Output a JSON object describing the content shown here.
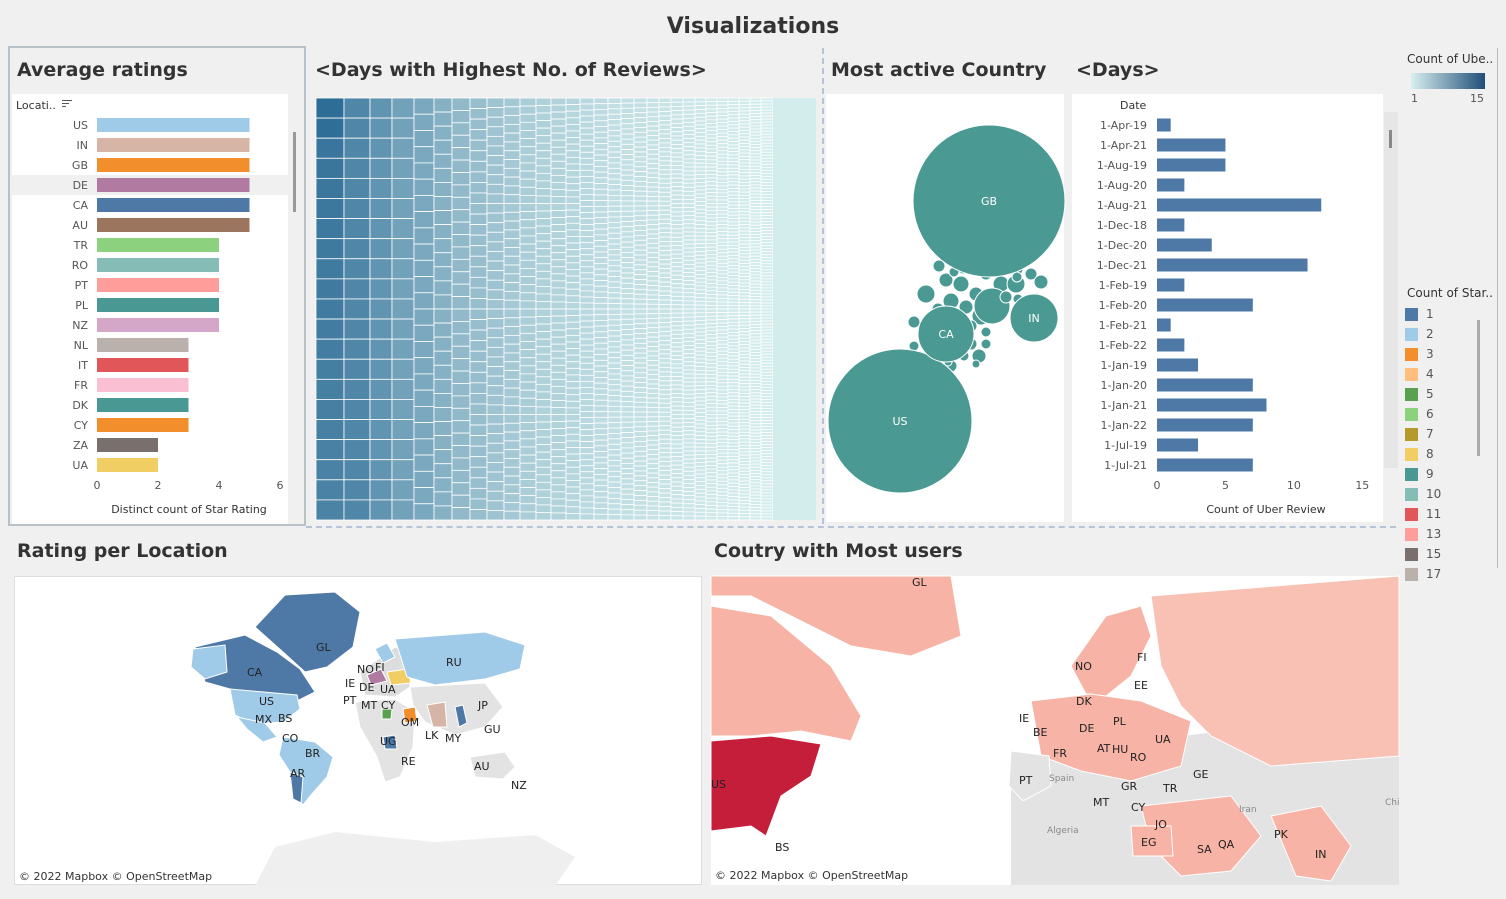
{
  "dashboard": {
    "title": "Visualizations"
  },
  "panels": {
    "avg_ratings": "Average ratings",
    "days_reviews": "<Days with Highest No. of Reviews>",
    "active_country": "Most active Country",
    "days": "<Days>",
    "rating_location": "Rating per Location",
    "country_users": "Coutry with Most users"
  },
  "legend_count_uber": {
    "title": "Count of Ube..",
    "min": "1",
    "max": "15",
    "colors": [
      "#d8f0ef",
      "#1f4e79"
    ]
  },
  "legend_star": {
    "title": "Count of Star..",
    "items": [
      {
        "label": "1",
        "color": "#4e79a7"
      },
      {
        "label": "2",
        "color": "#a0cbe8"
      },
      {
        "label": "3",
        "color": "#f28e2b"
      },
      {
        "label": "4",
        "color": "#ffbe7d"
      },
      {
        "label": "5",
        "color": "#59a14f"
      },
      {
        "label": "6",
        "color": "#8cd17d"
      },
      {
        "label": "7",
        "color": "#b6992d"
      },
      {
        "label": "8",
        "color": "#f1ce63"
      },
      {
        "label": "9",
        "color": "#499894"
      },
      {
        "label": "10",
        "color": "#86bcb6"
      },
      {
        "label": "11",
        "color": "#e15759"
      },
      {
        "label": "13",
        "color": "#ff9d9a"
      },
      {
        "label": "15",
        "color": "#79706e"
      },
      {
        "label": "17",
        "color": "#bab0ac"
      }
    ]
  },
  "chart_data": [
    {
      "type": "bar",
      "orientation": "horizontal",
      "title": "Average ratings",
      "row_header": "Locati..",
      "xlabel": "Distinct count of Star Rating",
      "xlim": [
        0,
        6
      ],
      "xticks": [
        "0",
        "2",
        "4",
        "6"
      ],
      "categories": [
        "US",
        "IN",
        "GB",
        "DE",
        "CA",
        "AU",
        "TR",
        "RO",
        "PT",
        "PL",
        "NZ",
        "NL",
        "IT",
        "FR",
        "DK",
        "CY",
        "ZA",
        "UA"
      ],
      "values": [
        5,
        5,
        5,
        5,
        5,
        5,
        4,
        4,
        4,
        4,
        4,
        3,
        3,
        3,
        3,
        3,
        2,
        2
      ],
      "colors": [
        "#a0cbe8",
        "#d7b5a6",
        "#f28e2b",
        "#b07aa1",
        "#4e79a7",
        "#9c755f",
        "#8cd17d",
        "#86bcb6",
        "#ff9d9a",
        "#499894",
        "#d4a6c8",
        "#bab0ac",
        "#e15759",
        "#fabfd2",
        "#499894",
        "#f28e2b",
        "#79706e",
        "#f1ce63"
      ]
    },
    {
      "type": "bar",
      "orientation": "horizontal",
      "title": "<Days>",
      "row_header": "Date",
      "xlabel": "Count of Uber Review",
      "xlim": [
        0,
        16
      ],
      "xticks": [
        "0",
        "5",
        "10",
        "15"
      ],
      "categories": [
        "1-Apr-19",
        "1-Apr-21",
        "1-Aug-19",
        "1-Aug-20",
        "1-Aug-21",
        "1-Dec-18",
        "1-Dec-20",
        "1-Dec-21",
        "1-Feb-19",
        "1-Feb-20",
        "1-Feb-21",
        "1-Feb-22",
        "1-Jan-19",
        "1-Jan-20",
        "1-Jan-21",
        "1-Jan-22",
        "1-Jul-19",
        "1-Jul-21"
      ],
      "values": [
        1,
        5,
        5,
        2,
        12,
        2,
        4,
        11,
        2,
        7,
        1,
        2,
        3,
        7,
        8,
        7,
        3,
        7
      ],
      "color": "#4e79a7"
    },
    {
      "type": "bubble",
      "title": "Most active Country",
      "labels": [
        "GB",
        "US",
        "CA",
        "IN"
      ],
      "color": "#4a9a93"
    }
  ],
  "maps": {
    "rating_labels": [
      "GL",
      "CA",
      "US",
      "MX",
      "BS",
      "CO",
      "BR",
      "AR",
      "NO",
      "FI",
      "IE",
      "DE",
      "UA",
      "PT",
      "MT",
      "CY",
      "OM",
      "RU",
      "JP",
      "GU",
      "LK",
      "MY",
      "UG",
      "RE",
      "AU",
      "NZ"
    ],
    "users_labels": [
      "GL",
      "NO",
      "FI",
      "EE",
      "DK",
      "IE",
      "BE",
      "DE",
      "PL",
      "UA",
      "FR",
      "AT",
      "HU",
      "RO",
      "PT",
      "GR",
      "TR",
      "GE",
      "MT",
      "CY",
      "JO",
      "EG",
      "SA",
      "QA",
      "PK",
      "IN",
      "BS",
      "US"
    ],
    "credit": "© 2022 Mapbox © OpenStreetMap",
    "basemap_labels": [
      "Algeria",
      "Iran",
      "Spain",
      "Chi"
    ]
  }
}
